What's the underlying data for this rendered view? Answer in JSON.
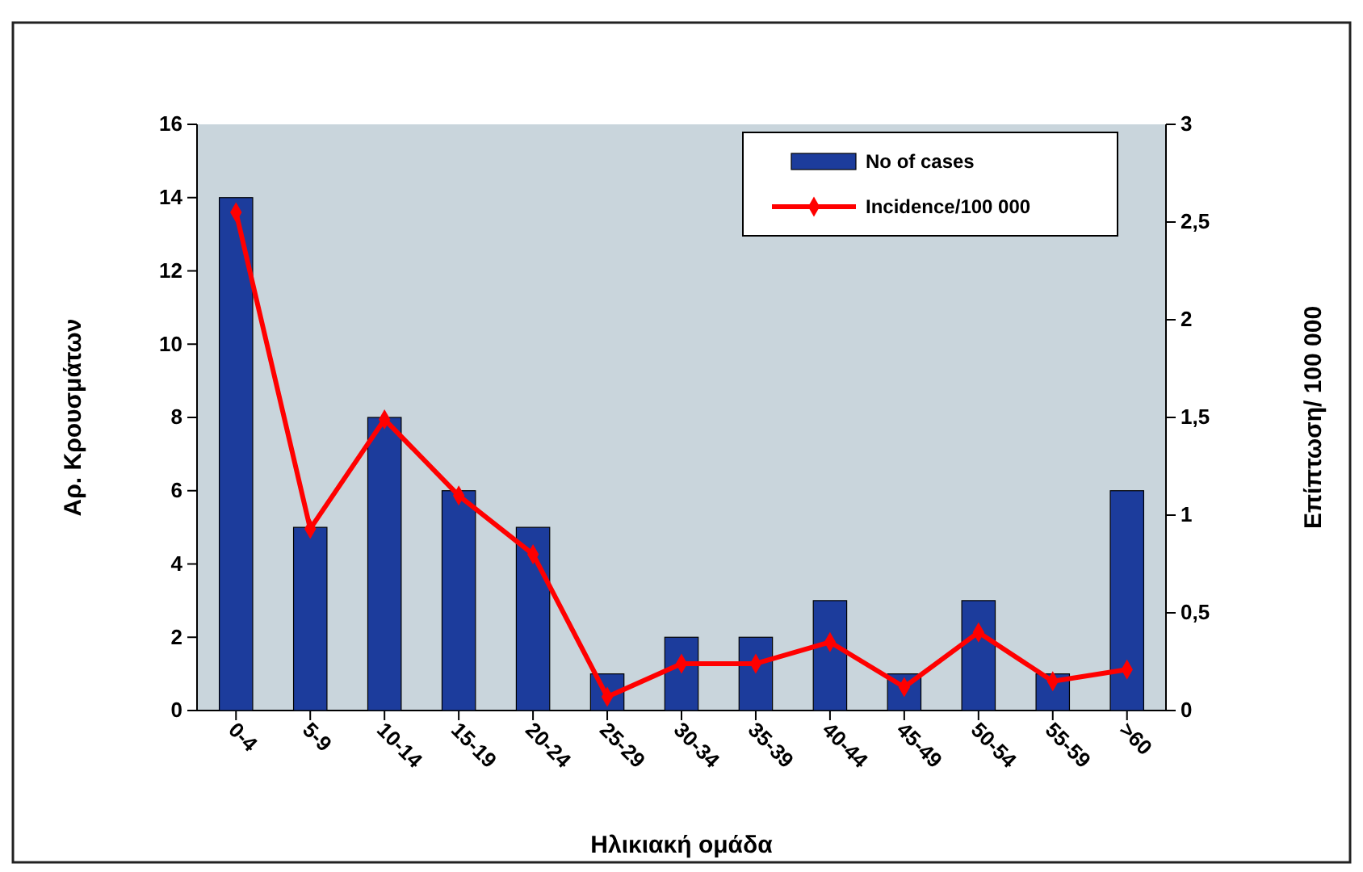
{
  "chart_data": {
    "type": "bar",
    "xlabel": "Ηλικιακή ομάδα",
    "ylabel": "Αρ. Κρουσμάτων",
    "y2label": "Επίπτωση/ 100 000",
    "categories": [
      "0-4",
      "5-9",
      "10-14",
      "15-19",
      "20-24",
      "25-29",
      "30-34",
      "35-39",
      "40-44",
      "45-49",
      "50-54",
      "55-59",
      ">60"
    ],
    "series": [
      {
        "name": "No of cases",
        "color": "#1c3c9c",
        "values": [
          14,
          5,
          8,
          6,
          5,
          1,
          2,
          2,
          3,
          1,
          3,
          1,
          6
        ]
      },
      {
        "name": "Incidence/100 000",
        "type": "line",
        "axis": "y2",
        "color": "#ff0000",
        "marker": "diamond",
        "values": [
          2.55,
          0.93,
          1.49,
          1.1,
          0.8,
          0.07,
          0.24,
          0.24,
          0.35,
          0.12,
          0.4,
          0.15,
          0.21
        ]
      }
    ],
    "ylim": [
      0,
      16
    ],
    "yticks": [
      0,
      2,
      4,
      6,
      8,
      10,
      12,
      14,
      16
    ],
    "y2lim": [
      0,
      3
    ],
    "y2ticks": [
      0,
      {
        "value": 0.5,
        "label": "0,5"
      },
      1,
      {
        "value": 1.5,
        "label": "1,5"
      },
      2,
      {
        "value": 2.5,
        "label": "2,5"
      },
      3
    ],
    "legend": "top right",
    "grid": false
  }
}
